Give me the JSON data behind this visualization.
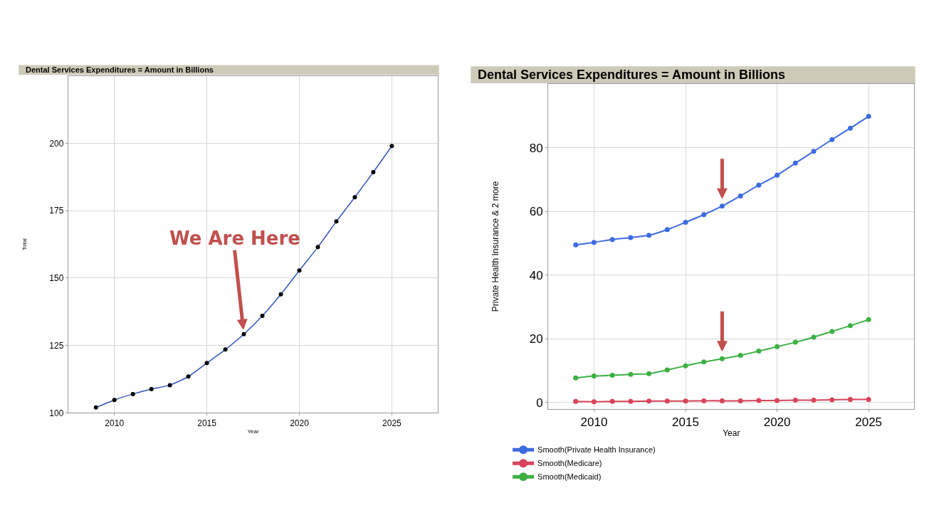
{
  "chart_data": [
    {
      "type": "line",
      "title": "Dental Services Expenditures = Amount in Billions",
      "xlabel": "Year",
      "ylabel": "Total",
      "x": [
        2009,
        2010,
        2011,
        2012,
        2013,
        2014,
        2015,
        2016,
        2017,
        2018,
        2019,
        2020,
        2021,
        2022,
        2023,
        2024,
        2025
      ],
      "series": [
        {
          "type": "scatter",
          "color": "#000000",
          "marker": "circle",
          "values": [
            102,
            104.8,
            107,
            108.8,
            110.3,
            113.5,
            118.5,
            123.5,
            129.2,
            136,
            144,
            152.8,
            161.5,
            171,
            180,
            189.3,
            199
          ]
        },
        {
          "type": "line",
          "color": "#3355bb",
          "marker": "none",
          "values": [
            102,
            104.8,
            107,
            108.8,
            110.3,
            113.5,
            118.5,
            123.5,
            129.2,
            136,
            144,
            152.8,
            161.5,
            171,
            180,
            189.3,
            199
          ]
        }
      ],
      "xlim": [
        2007.5,
        2027.5
      ],
      "ylim": [
        100,
        225
      ],
      "xticks": [
        2010,
        2015,
        2020,
        2025
      ],
      "yticks": [
        100,
        125,
        150,
        175,
        200
      ],
      "grid": true,
      "legend": false,
      "annotations": [
        {
          "text": "We Are Here",
          "x": 2017,
          "y": 129.2
        }
      ]
    },
    {
      "type": "line",
      "title": "Dental Services Expenditures = Amount in Billions",
      "xlabel": "Year",
      "ylabel": "Private Health Insurance & 2 more",
      "x": [
        2009,
        2010,
        2011,
        2012,
        2013,
        2014,
        2015,
        2016,
        2017,
        2018,
        2019,
        2020,
        2021,
        2022,
        2023,
        2024,
        2025
      ],
      "series": [
        {
          "name": "Smooth(Private Health Insurance)",
          "color": "#3d6be0",
          "values": [
            49.5,
            50.3,
            51.2,
            51.8,
            52.5,
            54.3,
            56.6,
            59.0,
            61.7,
            64.9,
            68.3,
            71.4,
            75.2,
            78.9,
            82.6,
            86.2,
            89.9
          ]
        },
        {
          "name": "Smooth(Medicare)",
          "color": "#d9435a",
          "values": [
            0.3,
            0.2,
            0.3,
            0.3,
            0.4,
            0.4,
            0.4,
            0.5,
            0.5,
            0.5,
            0.6,
            0.6,
            0.7,
            0.7,
            0.8,
            0.9,
            0.9
          ]
        },
        {
          "name": "Smooth(Medicaid)",
          "color": "#3cb043",
          "values": [
            7.7,
            8.3,
            8.5,
            8.8,
            9.0,
            10.2,
            11.5,
            12.7,
            13.7,
            14.8,
            16.1,
            17.5,
            18.9,
            20.5,
            22.3,
            24.1,
            26.0
          ]
        }
      ],
      "xlim": [
        2007.5,
        2027.5
      ],
      "ylim": [
        -2,
        100
      ],
      "xticks": [
        2010,
        2015,
        2020,
        2025
      ],
      "yticks": [
        0,
        20,
        40,
        60,
        80
      ],
      "grid": true,
      "legend": "bottom left",
      "marker": "circle"
    }
  ]
}
